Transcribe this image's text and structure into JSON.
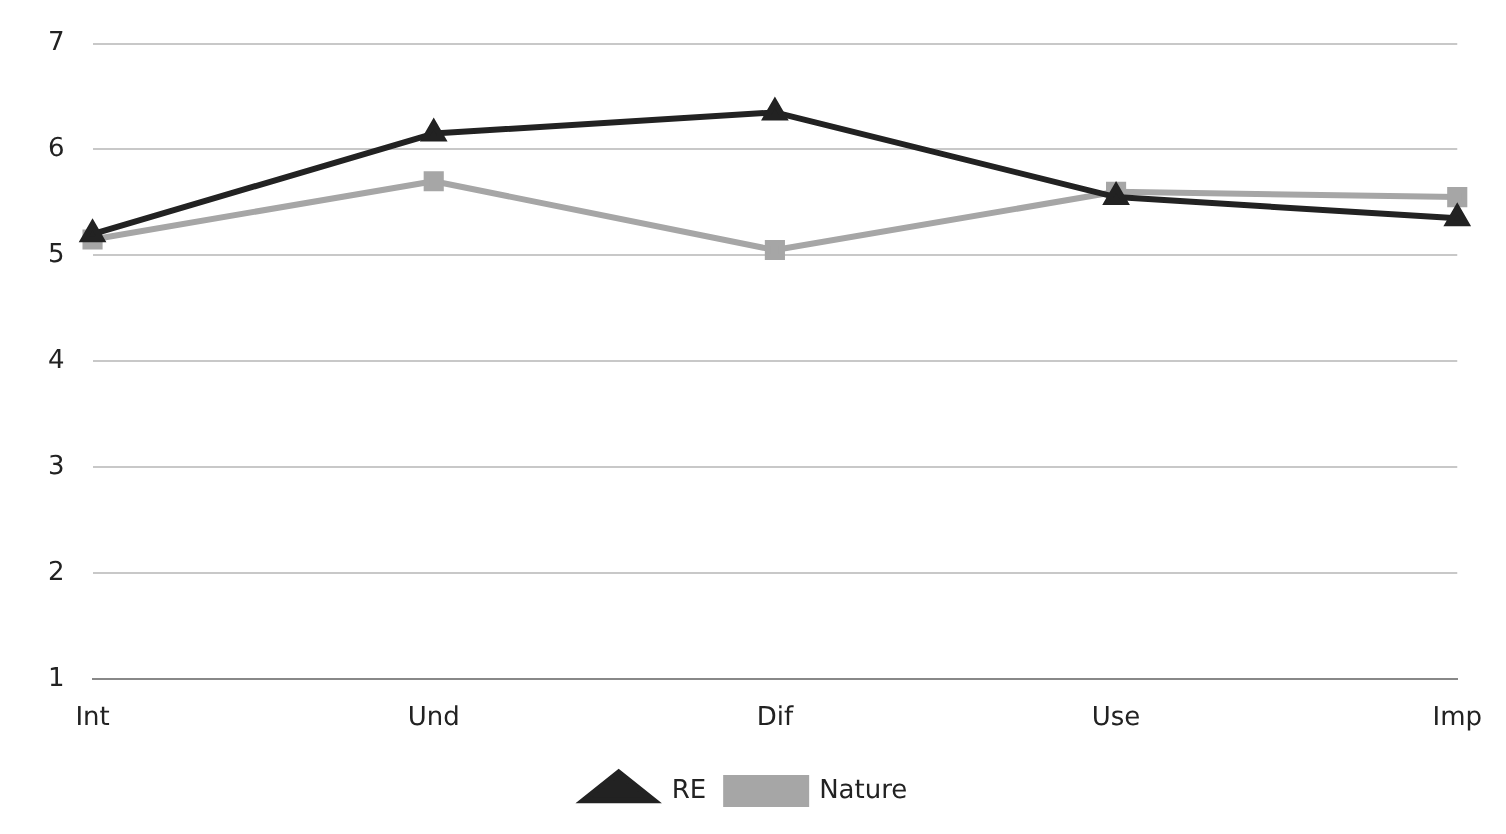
{
  "chart_data": {
    "type": "line",
    "categories": [
      "Int",
      "Und",
      "Dif",
      "Use",
      "Imp"
    ],
    "series": [
      {
        "name": "RE",
        "color": "#222222",
        "marker": "triangle",
        "values": [
          5.2,
          6.15,
          6.35,
          5.55,
          5.35
        ]
      },
      {
        "name": "Nature",
        "color": "#a6a6a6",
        "marker": "square",
        "values": [
          5.15,
          5.7,
          5.05,
          5.6,
          5.55
        ]
      }
    ],
    "ylim": [
      1,
      7
    ],
    "yticks": [
      1,
      2,
      3,
      4,
      5,
      6,
      7
    ],
    "grid": "y",
    "legend": "bottom",
    "line_style": "solid"
  }
}
